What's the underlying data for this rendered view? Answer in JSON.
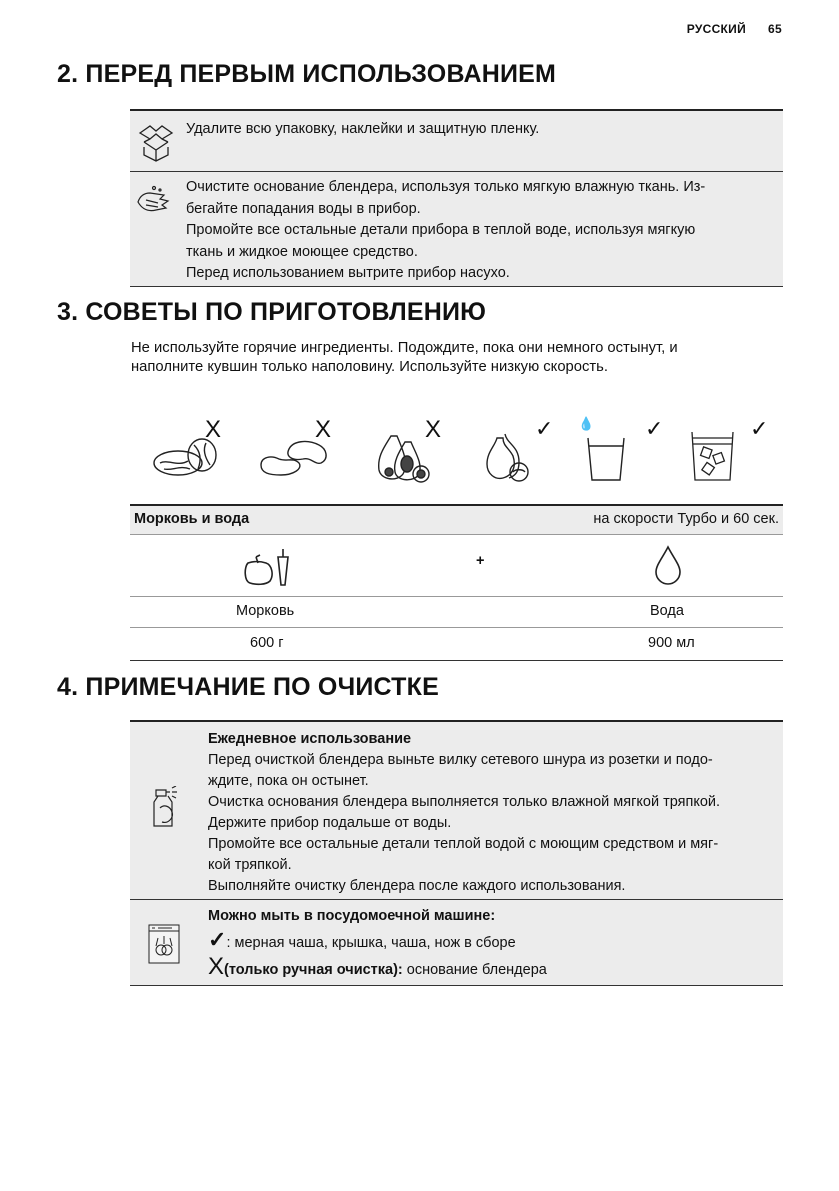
{
  "header": {
    "language": "РУССКИЙ",
    "page_number": "65"
  },
  "section2": {
    "title": "2. ПЕРЕД ПЕРВЫМ ИСПОЛЬЗОВАНИЕМ",
    "rows": [
      {
        "icon": "package-icon",
        "lines": [
          "Удалите всю упаковку, наклейки и защитную пленку."
        ]
      },
      {
        "icon": "hand-wipe-icon",
        "lines": [
          "Очистите основание блендера, используя только мягкую влажную ткань. Из-",
          "бегайте попадания воды в прибор.",
          "Промойте все остальные детали прибора в теплой воде, используя мягкую",
          "ткань и жидкое моющее средство.",
          "Перед использованием вытрите прибор насухо."
        ]
      }
    ]
  },
  "section3": {
    "title": "3. СОВЕТЫ ПО ПРИГОТОВЛЕНИЮ",
    "intro": [
      "Не используйте горячие ингредиенты. Подождите, пока они немного остынут, и",
      "наполните кувшин только наполовину. Используйте низкую скорость."
    ],
    "tips": [
      {
        "icon": "nuts-icon",
        "mark": "X"
      },
      {
        "icon": "beans-icon",
        "mark": "X"
      },
      {
        "icon": "avocado-icon",
        "mark": "X"
      },
      {
        "icon": "pear-icon",
        "mark": "✓"
      },
      {
        "icon": "liquid-glass-icon",
        "mark": "✓"
      },
      {
        "icon": "ice-glass-icon",
        "mark": "✓"
      }
    ],
    "recipe": {
      "title": "Моркowь и вода",
      "speed": "на скорости Турбо и 60 сек.",
      "plus": "+",
      "ingredients": [
        {
          "name": "Морковь",
          "amount": "600 г",
          "icon": "carrot-pepper-icon"
        },
        {
          "name": "Вода",
          "amount": "900 мл",
          "icon": "water-drop-icon"
        }
      ]
    }
  },
  "section4": {
    "title": "4. ПРИМЕЧАНИЕ ПО ОЧИСТКЕ",
    "daily": {
      "heading": "Ежедневное использование",
      "lines": [
        "Перед очисткой блендера выньте вилку сетевого шнура из розетки и подо-",
        "ждите, пока он остынет.",
        "Очистка основания блендера выполняется только влажной мягкой тряпкой.",
        "Держите прибор подальше от воды.",
        "Промойте все остальные детали теплой водой с моющим средством и мяг-",
        "кой тряпкой.",
        "Выполняйте очистку блендера после каждого использования."
      ]
    },
    "dishwasher": {
      "heading": "Можно мыть в посудомоечной машине:",
      "yes_mark": "✓",
      "yes_text": ": мерная чаша, крышка, чаша, нож в сборе",
      "no_mark": "X",
      "no_label": "(только ручная очистка):",
      "no_text": " основание блендера"
    }
  }
}
